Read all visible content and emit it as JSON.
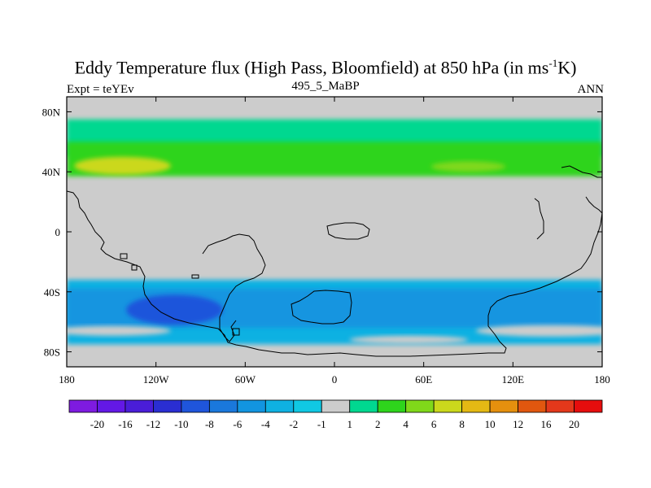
{
  "header": {
    "title_main": "Eddy Temperature flux (High Pass, Bloomfield) at 850 hPa (in ms",
    "title_sup": "-1",
    "title_tail": "K)",
    "left_label": "Expt = teYEv",
    "center_label": "495_5_MaBP",
    "right_label": "ANN"
  },
  "chart_data": {
    "type": "heatmap",
    "title": "Eddy Temperature flux (High Pass, Bloomfield) at 850 hPa (in ms-1K)",
    "subtitle_left": "Expt = teYEv",
    "subtitle_center": "495_5_MaBP",
    "subtitle_right": "ANN",
    "xlim": [
      -180,
      180
    ],
    "ylim": [
      -90,
      90
    ],
    "x_ticks": [
      {
        "value": -180,
        "label": "180"
      },
      {
        "value": -120,
        "label": "120W"
      },
      {
        "value": -60,
        "label": "60W"
      },
      {
        "value": 0,
        "label": "0"
      },
      {
        "value": 60,
        "label": "60E"
      },
      {
        "value": 120,
        "label": "120E"
      },
      {
        "value": 180,
        "label": "180"
      }
    ],
    "y_ticks": [
      {
        "value": 80,
        "label": "80N"
      },
      {
        "value": 40,
        "label": "40N"
      },
      {
        "value": 0,
        "label": "0"
      },
      {
        "value": -40,
        "label": "40S"
      },
      {
        "value": -80,
        "label": "80S"
      }
    ],
    "colorbar": {
      "colors": [
        "#7e1be0",
        "#6318e6",
        "#4a1dd8",
        "#2a2ed2",
        "#1f55db",
        "#1a78dc",
        "#1295e0",
        "#0fb1e2",
        "#10c8e3",
        "#cccccc",
        "#00d890",
        "#2ed41c",
        "#80d81a",
        "#cbd81c",
        "#e4b914",
        "#e5900e",
        "#e1570f",
        "#e3381b",
        "#e60d0d"
      ],
      "labels": [
        "-20",
        "-16",
        "-12",
        "-10",
        "-8",
        "-6",
        "-4",
        "-2",
        "-1",
        "1",
        "2",
        "4",
        "6",
        "8",
        "10",
        "12",
        "16",
        "20"
      ]
    },
    "field": [
      {
        "band": "NH storm track (lat 50-75)",
        "lon_range": [
          -180,
          180
        ],
        "value_range": [
          1,
          2
        ],
        "level": 1
      },
      {
        "band": "NH storm track core (lat 37-60)",
        "lon_range": [
          -180,
          180
        ],
        "value_range": [
          2,
          4
        ],
        "level": 2
      },
      {
        "band": "North Pacific maximum",
        "lon_range": [
          -175,
          -110
        ],
        "lat_range": [
          38,
          50
        ],
        "value_range": [
          4,
          8
        ],
        "level": 4
      },
      {
        "band": "North Atlantic maximum",
        "lon_range": [
          65,
          115
        ],
        "lat_range": [
          40,
          47
        ],
        "value_range": [
          4,
          6
        ],
        "level": 3
      },
      {
        "band": "SH storm track (lat -32 to -75)",
        "lon_range": [
          -180,
          180
        ],
        "value_range": [
          -2,
          -4
        ],
        "level": -2
      },
      {
        "band": "SH core",
        "lon_range": [
          -180,
          180
        ],
        "lat_range": [
          -38,
          -64
        ],
        "value_range": [
          -4,
          -6
        ],
        "level": -3
      },
      {
        "band": "South Pacific minimum",
        "lon_range": [
          -140,
          -75
        ],
        "lat_range": [
          -42,
          -62
        ],
        "value_range": [
          -6,
          -10
        ],
        "level": -5
      }
    ]
  }
}
